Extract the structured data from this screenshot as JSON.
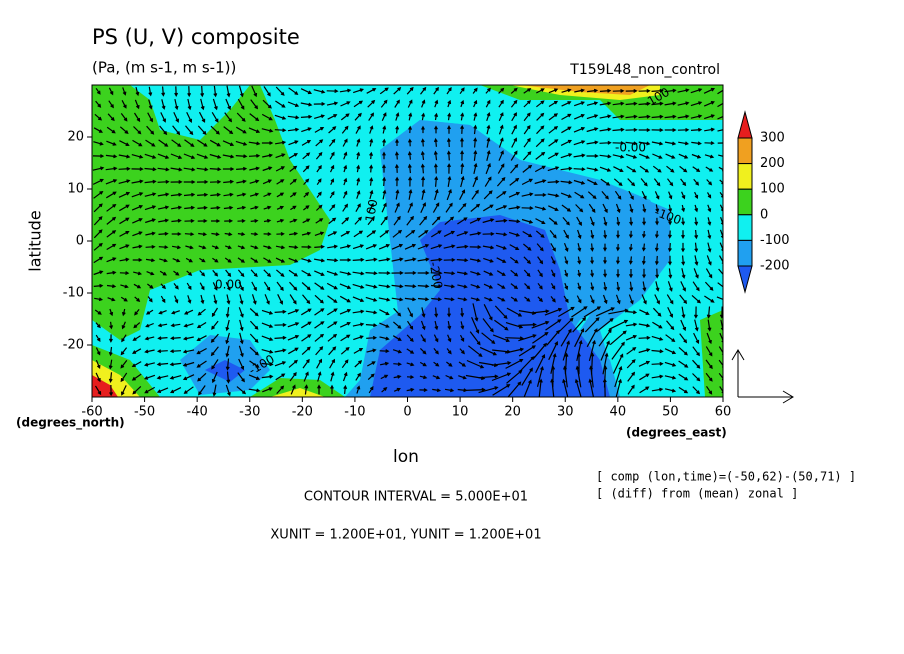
{
  "chart_data": {
    "type": "contour",
    "title": "PS (U, V) composite",
    "subtitle": "(Pa, (m s-1, m s-1))",
    "run_label": "T159L48_non_control",
    "ylabel": "latitude",
    "xlabel": "lon",
    "y_unit_label": "(degrees_north)",
    "x_unit_label": "(degrees_east)",
    "xlim": [
      -60,
      60
    ],
    "ylim": [
      -30,
      30
    ],
    "xticks": [
      -60,
      -50,
      -40,
      -30,
      -20,
      -10,
      0,
      10,
      20,
      30,
      40,
      50,
      60
    ],
    "yticks": [
      -20,
      -10,
      0,
      10,
      20
    ],
    "levels": [
      -200,
      -100,
      0,
      100,
      200,
      300
    ],
    "colors": [
      "#1e5af0",
      "#20a0f0",
      "#10f0f0",
      "#3cd21e",
      "#f0f01e",
      "#f0a020",
      "#e61e1e"
    ],
    "contour_labels": [
      "-100",
      "-0.00",
      "-100",
      "100",
      "-200",
      "0.00",
      "-100"
    ],
    "notes": [
      "CONTOUR INTERVAL = 5.000E+01",
      "XUNIT = 1.200E+01, YUNIT = 1.200E+01"
    ],
    "comments": [
      "[ comp (lon,time)=(-50,62)-(50,71) ]",
      "[ (diff) from (mean) zonal ]"
    ]
  }
}
